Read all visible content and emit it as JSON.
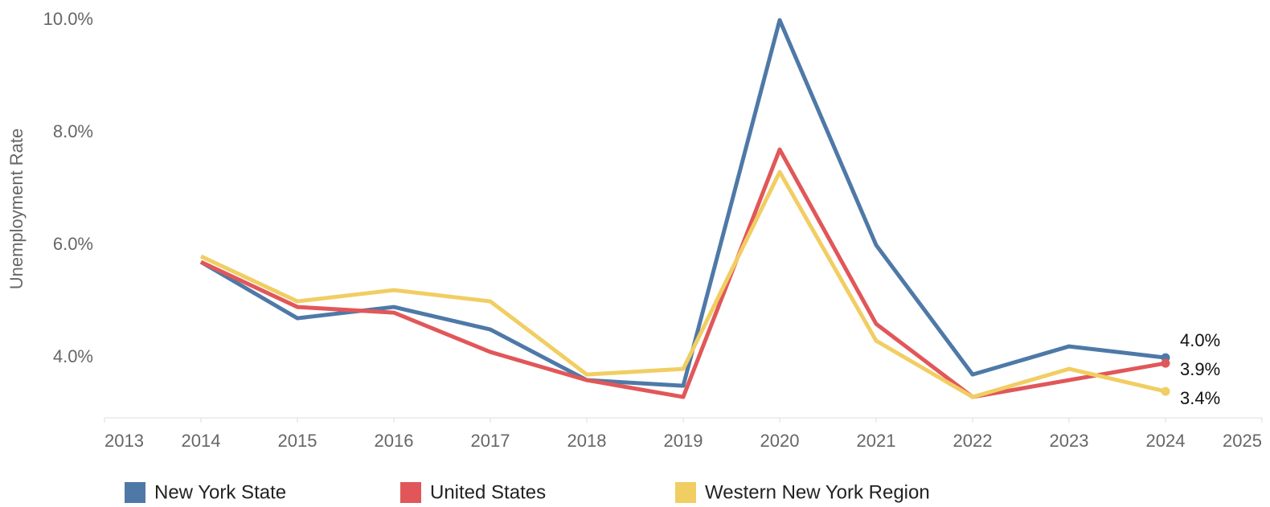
{
  "chart_data": {
    "type": "line",
    "y_label": "Unemployment Rate",
    "x": [
      2014,
      2015,
      2016,
      2017,
      2018,
      2019,
      2020,
      2021,
      2022,
      2023,
      2024
    ],
    "xlim": [
      2013,
      2025
    ],
    "xticks": [
      2013,
      2014,
      2015,
      2016,
      2017,
      2018,
      2019,
      2020,
      2021,
      2022,
      2023,
      2024,
      2025
    ],
    "ylim": [
      2.93,
      10.0
    ],
    "yticks": [
      {
        "value": 4,
        "label": "4.0%"
      },
      {
        "value": 6,
        "label": "6.0%"
      },
      {
        "value": 8,
        "label": "8.0%"
      },
      {
        "value": 10,
        "label": "10.0%"
      }
    ],
    "series": [
      {
        "name": "New York State",
        "color": "#4e79a7",
        "values": [
          5.7,
          4.7,
          4.9,
          4.5,
          3.6,
          3.5,
          10.0,
          6.0,
          3.7,
          4.2,
          4.0
        ],
        "value_labels": [
          null,
          null,
          null,
          null,
          null,
          null,
          null,
          null,
          null,
          null,
          "4.0%"
        ]
      },
      {
        "name": "United States",
        "color": "#e15759",
        "values": [
          5.7,
          4.9,
          4.8,
          4.1,
          3.6,
          3.3,
          7.7,
          4.6,
          3.3,
          3.6,
          3.9
        ],
        "value_labels": [
          null,
          null,
          null,
          null,
          null,
          null,
          null,
          null,
          null,
          null,
          "3.9%"
        ]
      },
      {
        "name": "Western New York Region",
        "color": "#f1ce63",
        "values": [
          5.8,
          5.0,
          5.2,
          5.0,
          3.7,
          3.8,
          7.3,
          4.3,
          3.3,
          3.8,
          3.4
        ],
        "value_labels": [
          null,
          null,
          null,
          null,
          null,
          null,
          null,
          null,
          null,
          null,
          "3.4%"
        ]
      }
    ]
  }
}
